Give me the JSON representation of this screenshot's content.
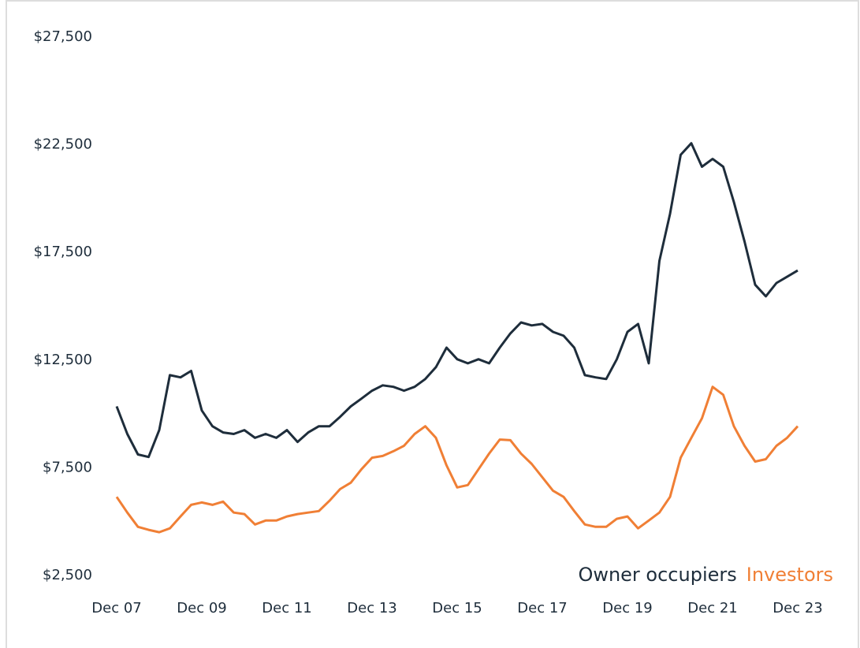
{
  "chart_data": {
    "type": "line",
    "categories": [
      "Dec 07",
      null,
      null,
      null,
      null,
      null,
      null,
      null,
      "Dec 09",
      null,
      null,
      null,
      null,
      null,
      null,
      null,
      "Dec 11",
      null,
      null,
      null,
      null,
      null,
      null,
      null,
      "Dec 13",
      null,
      null,
      null,
      null,
      null,
      null,
      null,
      "Dec 15",
      null,
      null,
      null,
      null,
      null,
      null,
      null,
      "Dec 17",
      null,
      null,
      null,
      null,
      null,
      null,
      null,
      "Dec 19",
      null,
      null,
      null,
      null,
      null,
      null,
      null,
      "Dec 21",
      null,
      null,
      null,
      null,
      null,
      null,
      null,
      "Dec 23"
    ],
    "series": [
      {
        "name": "Owner occupiers",
        "color": "#1e2d3b",
        "values": [
          10350,
          9070,
          8120,
          8000,
          9250,
          11800,
          11700,
          12000,
          10160,
          9430,
          9140,
          9070,
          9250,
          8890,
          9070,
          8890,
          9250,
          8700,
          9140,
          9430,
          9430,
          9870,
          10350,
          10710,
          11080,
          11330,
          11260,
          11080,
          11260,
          11620,
          12170,
          13080,
          12540,
          12350,
          12540,
          12350,
          13080,
          13740,
          14250,
          14110,
          14180,
          13810,
          13630,
          13080,
          11800,
          11700,
          11620,
          12540,
          13810,
          14180,
          12350,
          17100,
          19290,
          22030,
          22570,
          21480,
          21840,
          21480,
          19840,
          18010,
          16000,
          15460,
          16080,
          16370,
          16660
        ]
      },
      {
        "name": "Investors",
        "color": "#f07f35",
        "values": [
          6150,
          5420,
          4760,
          4620,
          4510,
          4690,
          5240,
          5780,
          5890,
          5780,
          5930,
          5420,
          5350,
          4870,
          5050,
          5050,
          5240,
          5350,
          5420,
          5490,
          5970,
          6510,
          6810,
          7430,
          7970,
          8050,
          8270,
          8520,
          9070,
          9430,
          8890,
          7610,
          6590,
          6700,
          7430,
          8160,
          8810,
          8780,
          8160,
          7680,
          7060,
          6440,
          6150,
          5490,
          4870,
          4760,
          4760,
          5130,
          5240,
          4690,
          5050,
          5420,
          6150,
          7970,
          8890,
          9800,
          11260,
          10890,
          9430,
          8520,
          7790,
          7900,
          8520,
          8890,
          9430
        ]
      }
    ],
    "ylim": [
      2500,
      27500
    ],
    "yticks": [
      {
        "value": 2500,
        "label": "$2,500"
      },
      {
        "value": 7500,
        "label": "$7,500"
      },
      {
        "value": 12500,
        "label": "$12,500"
      },
      {
        "value": 17500,
        "label": "$17,500"
      },
      {
        "value": 22500,
        "label": "$22,500"
      },
      {
        "value": 27500,
        "label": "$27,500"
      }
    ],
    "grid": false
  }
}
